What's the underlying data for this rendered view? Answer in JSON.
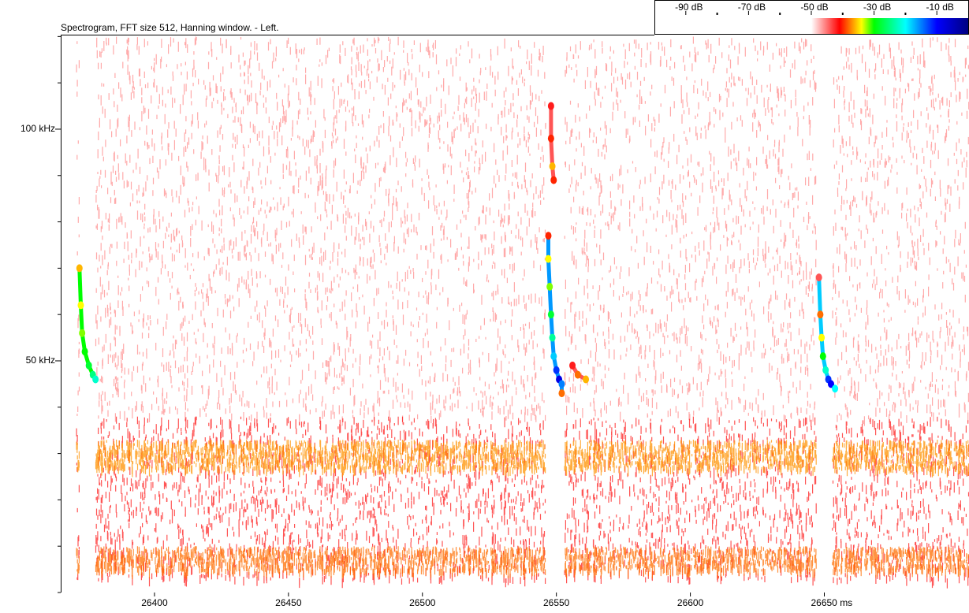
{
  "chart_data": {
    "type": "spectrogram",
    "title": "Spectrogram, FFT size 512, Hanning window. - Left.",
    "xlim": [
      26365,
      26704
    ],
    "xticks": [
      26400,
      26450,
      26500,
      26550,
      26600,
      {
        "value": 26650,
        "label": "26650 ms"
      }
    ],
    "ylim": [
      0,
      120.4
    ],
    "yticks": [
      {
        "value": 50,
        "label": "50 kHz"
      },
      {
        "value": 100,
        "label": "100 kHz"
      }
    ],
    "yminor": [
      0,
      10,
      20,
      30,
      40,
      60,
      70,
      80,
      90,
      110,
      120
    ],
    "colorbar": {
      "lim": [
        -100,
        0
      ],
      "ticks": [
        {
          "value": -90,
          "label": "-90 dB"
        },
        {
          "value": -70,
          "label": "-70 dB"
        },
        {
          "value": -50,
          "label": "-50 dB"
        },
        {
          "value": -30,
          "label": "-30 dB"
        },
        {
          "value": -10,
          "label": "-10 dB"
        }
      ],
      "minor": [
        -80,
        -60,
        -40,
        -20
      ],
      "stops": [
        {
          "value": -50,
          "color": "#ffffff"
        },
        {
          "value": -41,
          "color": "#ff0000"
        },
        {
          "value": -34,
          "color": "#ffff00"
        },
        {
          "value": -30,
          "color": "#00ff00"
        },
        {
          "value": -20,
          "color": "#00ffff"
        },
        {
          "value": -10,
          "color": "#0000ff"
        },
        {
          "value": 0,
          "color": "#000080"
        }
      ]
    },
    "noise": [
      {
        "khz": [
          38,
          120
        ],
        "db": -46
      },
      {
        "khz": [
          3,
          38
        ],
        "db": -42
      },
      {
        "khz": [
          27,
          33
        ],
        "db": -37
      },
      {
        "khz": [
          5,
          10
        ],
        "db": -38
      }
    ],
    "gaps": [
      [
        26372,
        26378
      ],
      [
        26546,
        26553
      ],
      [
        26647,
        26653
      ]
    ],
    "calls": [
      {
        "t": [
          26372,
          26372.5,
          26373,
          26374,
          26375.5,
          26377,
          26378
        ],
        "khz": [
          70,
          62,
          56,
          52,
          49,
          47,
          46
        ],
        "db": [
          -36,
          -34,
          -32,
          -30,
          -28,
          -25,
          -22
        ]
      },
      {
        "t": [
          26547,
          26547,
          26547.5,
          26548,
          26548.5,
          26549,
          26550,
          26551,
          26552,
          26552
        ],
        "khz": [
          77,
          72,
          66,
          60,
          55,
          51,
          48,
          46,
          45,
          43
        ],
        "db": [
          -40,
          -34,
          -32,
          -28,
          -24,
          -18,
          -12,
          -8,
          -15,
          -38
        ]
      },
      {
        "t": [
          26548,
          26548,
          26548.5,
          26549
        ],
        "khz": [
          105,
          98,
          92,
          89
        ],
        "db": [
          -42,
          -40,
          -36,
          -40
        ]
      },
      {
        "t": [
          26648,
          26648.5,
          26649,
          26649.5,
          26650.5,
          26651.5,
          26652.5,
          26654
        ],
        "khz": [
          68,
          60,
          55,
          51,
          48,
          46,
          45,
          44
        ],
        "db": [
          -44,
          -38,
          -34,
          -30,
          -22,
          -12,
          -10,
          -20
        ]
      },
      {
        "t": [
          26556,
          26558,
          26561
        ],
        "khz": [
          49,
          47,
          46
        ],
        "db": [
          -42,
          -38,
          -36
        ]
      }
    ]
  }
}
